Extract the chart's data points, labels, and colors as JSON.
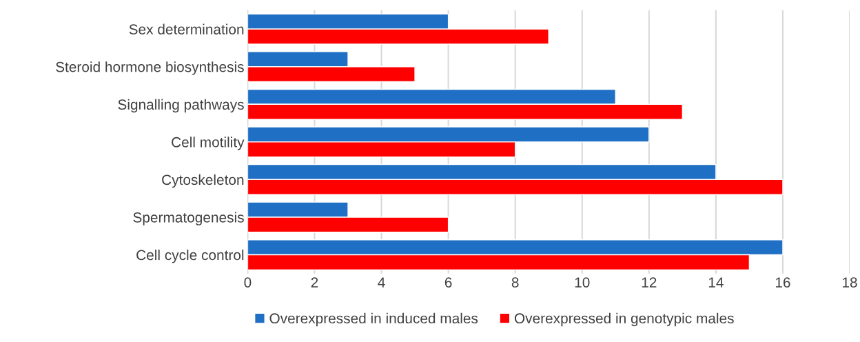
{
  "chart_data": {
    "type": "bar",
    "orientation": "horizontal",
    "categories": [
      "Sex determination",
      "Steroid hormone biosynthesis",
      "Signalling pathways",
      "Cell motility",
      "Cytoskeleton",
      "Spermatogenesis",
      "Cell cycle control"
    ],
    "series": [
      {
        "name": "Overexpressed in induced males",
        "color": "#1f6fc4",
        "values": [
          6,
          3,
          11,
          12,
          14,
          3,
          16
        ]
      },
      {
        "name": "Overexpressed in genotypic males",
        "color": "#ff0000",
        "values": [
          9,
          5,
          13,
          8,
          16,
          6,
          15
        ]
      }
    ],
    "xlim": [
      0,
      18
    ],
    "xticks": [
      0,
      2,
      4,
      6,
      8,
      10,
      12,
      14,
      16,
      18
    ],
    "grid": "x",
    "legend": "bottom"
  }
}
